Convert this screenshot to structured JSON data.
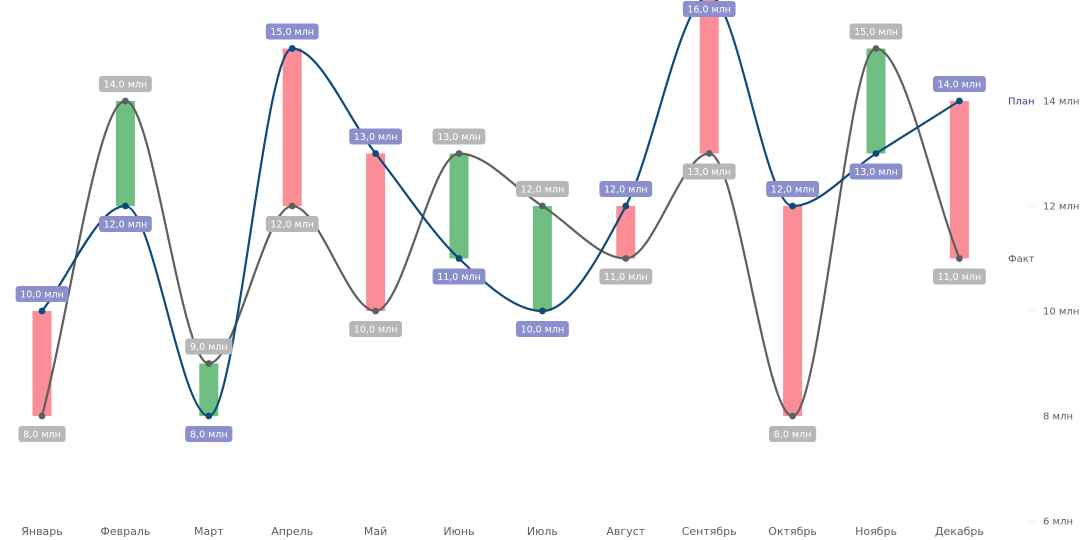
{
  "chart_data": {
    "type": "line",
    "categories": [
      "Январь",
      "Февраль",
      "Март",
      "Апрель",
      "Май",
      "Июнь",
      "Июль",
      "Август",
      "Сентябрь",
      "Октябрь",
      "Ноябрь",
      "Декабрь"
    ],
    "series": [
      {
        "name": "План",
        "values": [
          10,
          12,
          8,
          15,
          13,
          11,
          10,
          12,
          16,
          12,
          13,
          14
        ],
        "labels": [
          "10,0 млн",
          "12,0 млн",
          "8,0 млн",
          "15,0 млн",
          "13,0 млн",
          "11,0 млн",
          "10,0 млн",
          "12,0 млн",
          "16,0 млн",
          "12,0 млн",
          "13,0 млн",
          "14,0 млн"
        ],
        "color": "#0f4a7a",
        "label_bg": "#8b90cd"
      },
      {
        "name": "Факт",
        "values": [
          8,
          14,
          9,
          12,
          10,
          13,
          12,
          11,
          13,
          8,
          15,
          11
        ],
        "labels": [
          "8,0 млн",
          "14,0 млн",
          "9,0 млн",
          "12,0 млн",
          "10,0 млн",
          "13,0 млн",
          "12,0 млн",
          "11,0 млн",
          "13,0 млн",
          "8,0 млн",
          "15,0 млн",
          "11,0 млн"
        ],
        "color": "#5f5f5f",
        "label_bg": "#b7b7b7"
      }
    ],
    "variance_colors": {
      "above_plan": "#6fbf83",
      "below_plan": "#fb8d97"
    },
    "y_ticks": [
      "6 млн",
      "8 млн",
      "10 млн",
      "12 млн",
      "14 млн"
    ],
    "y_tick_values": [
      6,
      8,
      10,
      12,
      14
    ],
    "ylim": [
      6,
      16
    ],
    "y_axis_position": "right",
    "grid": false,
    "legend": "inline-right"
  }
}
